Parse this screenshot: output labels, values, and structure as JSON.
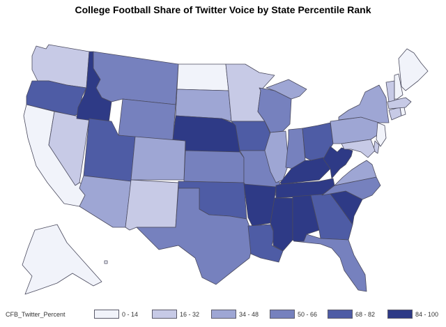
{
  "title": "College Football Share of Twitter Voice by State Percentile Rank",
  "legend": {
    "title": "CFB_Twitter_Percent",
    "bins": [
      {
        "label": "0 - 14",
        "color": "#f1f3fa"
      },
      {
        "label": "16 - 32",
        "color": "#c7cae6"
      },
      {
        "label": "34 - 48",
        "color": "#9ea6d4"
      },
      {
        "label": "50 - 66",
        "color": "#7681be"
      },
      {
        "label": "68 - 82",
        "color": "#4e5ca5"
      },
      {
        "label": "84 - 100",
        "color": "#2e3a86"
      }
    ]
  },
  "states": {
    "WA": 1,
    "OR": 4,
    "CA": 0,
    "NV": 1,
    "ID": 5,
    "MT": 3,
    "WY": 3,
    "UT": 4,
    "AZ": 2,
    "CO": 2,
    "NM": 1,
    "ND": 0,
    "SD": 2,
    "NE": 5,
    "KS": 3,
    "OK": 4,
    "TX": 3,
    "MN": 1,
    "IA": 4,
    "MO": 3,
    "AR": 5,
    "LA": 4,
    "WI": 3,
    "IL": 2,
    "MI": 2,
    "IN": 3,
    "OH": 4,
    "KY": 5,
    "TN": 5,
    "MS": 5,
    "AL": 5,
    "GA": 4,
    "FL": 3,
    "SC": 5,
    "NC": 3,
    "VA": 2,
    "WV": 5,
    "PA": 2,
    "NY": 2,
    "ME": 0,
    "VT": 1,
    "NH": 0,
    "MA": 1,
    "CT": 1,
    "RI": 0,
    "NJ": 0,
    "DE": 1,
    "MD": 1,
    "AK": 0,
    "HI": 0
  }
}
